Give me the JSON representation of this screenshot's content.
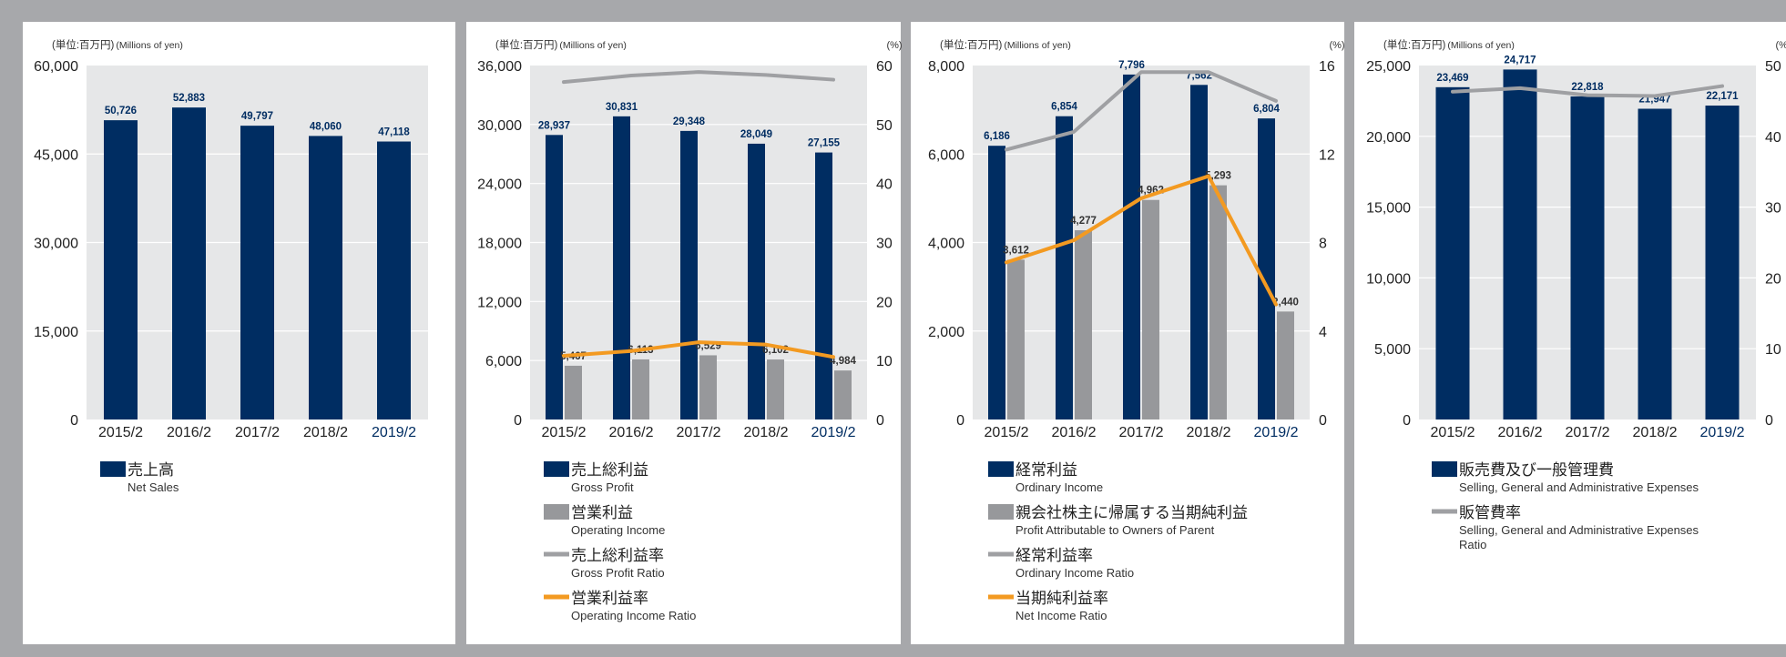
{
  "colors": {
    "navy": "#002d62",
    "gray_bar": "#97989b",
    "gray_line": "#9fa0a3",
    "orange_line": "#f39a21",
    "plot_bg": "#e6e7e8",
    "panel_bg": "#ffffff",
    "border": "#a7a8ab",
    "highlight_year": "#002d62"
  },
  "chart_data": [
    {
      "type": "bar",
      "unit_label": "(単位:百万円)",
      "unit_label_en": "(Millions of yen)",
      "categories": [
        "2015/2",
        "2016/2",
        "2017/2",
        "2018/2",
        "2019/2"
      ],
      "highlight_category": "2019/2",
      "ylim": [
        0,
        60000
      ],
      "yticks": [
        "0",
        "15,000",
        "30,000",
        "45,000",
        "60,000"
      ],
      "series": [
        {
          "name": "売上高",
          "name_en": "Net Sales",
          "kind": "bar",
          "color": "#002d62",
          "axis": "left",
          "values": [
            50726,
            52883,
            49797,
            48060,
            47118
          ],
          "labels": [
            "50,726",
            "52,883",
            "49,797",
            "48,060",
            "47,118"
          ]
        }
      ]
    },
    {
      "type": "bar",
      "unit_label": "(単位:百万円)",
      "unit_label_en": "(Millions of yen)",
      "right_unit": "(%)",
      "categories": [
        "2015/2",
        "2016/2",
        "2017/2",
        "2018/2",
        "2019/2"
      ],
      "highlight_category": "2019/2",
      "ylim": [
        0,
        36000
      ],
      "yticks": [
        "0",
        "6,000",
        "12,000",
        "18,000",
        "24,000",
        "30,000",
        "36,000"
      ],
      "y2lim": [
        0,
        60
      ],
      "y2ticks": [
        "0",
        "10",
        "20",
        "30",
        "40",
        "50",
        "60"
      ],
      "series": [
        {
          "name": "売上総利益",
          "name_en": "Gross Profit",
          "kind": "bar",
          "color": "#002d62",
          "axis": "left",
          "values": [
            28937,
            30831,
            29348,
            28049,
            27155
          ],
          "labels": [
            "28,937",
            "30,831",
            "29,348",
            "28,049",
            "27,155"
          ]
        },
        {
          "name": "営業利益",
          "name_en": "Operating Income",
          "kind": "bar",
          "color": "#97989b",
          "axis": "left",
          "values": [
            5467,
            6113,
            6529,
            6102,
            4984
          ],
          "labels": [
            "5,467",
            "6,113",
            "6,529",
            "6,102",
            "4,984"
          ]
        },
        {
          "name": "売上総利益率",
          "name_en": "Gross Profit Ratio",
          "kind": "line",
          "color": "#9fa0a3",
          "axis": "right",
          "values": [
            57.2,
            58.3,
            58.9,
            58.4,
            57.6
          ]
        },
        {
          "name": "営業利益率",
          "name_en": "Operating Income Ratio",
          "kind": "line",
          "color": "#f39a21",
          "axis": "right",
          "values": [
            10.8,
            11.6,
            13.1,
            12.7,
            10.6
          ]
        }
      ]
    },
    {
      "type": "bar",
      "unit_label": "(単位:百万円)",
      "unit_label_en": "(Millions of yen)",
      "right_unit": "(%)",
      "categories": [
        "2015/2",
        "2016/2",
        "2017/2",
        "2018/2",
        "2019/2"
      ],
      "highlight_category": "2019/2",
      "ylim": [
        0,
        8000
      ],
      "yticks": [
        "0",
        "2,000",
        "4,000",
        "6,000",
        "8,000"
      ],
      "y2lim": [
        0,
        16
      ],
      "y2ticks": [
        "0",
        "4",
        "8",
        "12",
        "16"
      ],
      "series": [
        {
          "name": "経常利益",
          "name_en": "Ordinary Income",
          "kind": "bar",
          "color": "#002d62",
          "axis": "left",
          "values": [
            6186,
            6854,
            7796,
            7562,
            6804
          ],
          "labels": [
            "6,186",
            "6,854",
            "7,796",
            "7,562",
            "6,804"
          ]
        },
        {
          "name": "親会社株主に帰属する当期純利益",
          "name_en": "Profit Attributable to Owners of Parent",
          "kind": "bar",
          "color": "#97989b",
          "axis": "left",
          "values": [
            3612,
            4277,
            4962,
            5293,
            2440
          ],
          "labels": [
            "3,612",
            "4,277",
            "4,962",
            "5,293",
            "2,440"
          ]
        },
        {
          "name": "経常利益率",
          "name_en": "Ordinary Income Ratio",
          "kind": "line",
          "color": "#9fa0a3",
          "axis": "right",
          "values": [
            12.2,
            13.0,
            15.7,
            15.7,
            14.4
          ]
        },
        {
          "name": "当期純利益率",
          "name_en": "Net Income Ratio",
          "kind": "line",
          "color": "#f39a21",
          "axis": "right",
          "values": [
            7.1,
            8.1,
            10.0,
            11.0,
            5.2
          ]
        }
      ]
    },
    {
      "type": "bar",
      "unit_label": "(単位:百万円)",
      "unit_label_en": "(Millions of yen)",
      "right_unit": "(%)",
      "categories": [
        "2015/2",
        "2016/2",
        "2017/2",
        "2018/2",
        "2019/2"
      ],
      "highlight_category": "2019/2",
      "ylim": [
        0,
        25000
      ],
      "yticks": [
        "0",
        "5,000",
        "10,000",
        "15,000",
        "20,000",
        "25,000"
      ],
      "y2lim": [
        0,
        50
      ],
      "y2ticks": [
        "0",
        "10",
        "20",
        "30",
        "40",
        "50"
      ],
      "series": [
        {
          "name": "販売費及び一般管理費",
          "name_en": "Selling, General and Administrative Expenses",
          "kind": "bar",
          "color": "#002d62",
          "axis": "left",
          "values": [
            23469,
            24717,
            22818,
            21947,
            22171
          ],
          "labels": [
            "23,469",
            "24,717",
            "22,818",
            "21,947",
            "22,171"
          ]
        },
        {
          "name": "販管費率",
          "name_en": "Selling, General and Administrative Expenses Ratio",
          "kind": "line",
          "color": "#9fa0a3",
          "axis": "right",
          "values": [
            46.3,
            46.8,
            45.8,
            45.7,
            47.1
          ]
        }
      ]
    }
  ]
}
